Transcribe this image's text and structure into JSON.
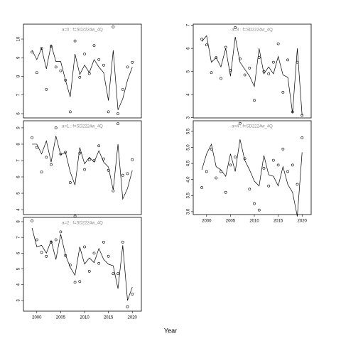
{
  "xlabel": "Year",
  "chart_data": [
    {
      "type": "line",
      "title": "a=0  :  f=SD2224w_4Q",
      "x": [
        1999,
        2000,
        2001,
        2002,
        2003,
        2004,
        2005,
        2006,
        2007,
        2008,
        2009,
        2010,
        2011,
        2012,
        2013,
        2014,
        2015,
        2016,
        2017,
        2018,
        2019,
        2020
      ],
      "xlim": [
        1997.2,
        2021.9
      ],
      "ylim": [
        5.77,
        10.8
      ],
      "yticks": [
        6,
        7,
        8,
        9,
        10
      ],
      "series": [
        {
          "color": "#000000",
          "marker": "circle",
          "values": [
            9.3,
            8.2,
            9.5,
            7.3,
            9.6,
            8.5,
            8.3,
            7.8,
            6.1,
            9.9,
            7.95,
            9.2,
            8.15,
            9.65,
            8.9,
            8.6,
            6.1,
            10.65,
            6.0,
            7.3,
            8.5,
            8.75
          ]
        },
        {
          "color": "#000000",
          "marker": "none",
          "values": [
            9.4,
            8.9,
            9.5,
            8.4,
            9.7,
            8.8,
            8.8,
            7.8,
            6.9,
            9.2,
            8.1,
            8.6,
            8.2,
            8.9,
            8.5,
            8.2,
            6.7,
            9.4,
            6.2,
            6.8,
            7.8,
            8.5
          ]
        }
      ]
    },
    {
      "type": "line",
      "title": "a=1  :  f=SD2224w_4Q",
      "x": [
        1999,
        2000,
        2001,
        2002,
        2003,
        2004,
        2005,
        2006,
        2007,
        2008,
        2009,
        2010,
        2011,
        2012,
        2013,
        2014,
        2015,
        2016,
        2017,
        2018,
        2019,
        2020
      ],
      "xlim": [
        1997.2,
        2021.9
      ],
      "ylim": [
        3.7,
        9.43
      ],
      "yticks": [
        4,
        5,
        6,
        7,
        8,
        9
      ],
      "series": [
        {
          "color": "#000000",
          "marker": "circle",
          "values": [
            8.4,
            7.8,
            6.3,
            7.2,
            6.75,
            9.0,
            7.4,
            7.5,
            5.65,
            3.6,
            7.45,
            6.45,
            7.05,
            7.0,
            7.9,
            7.1,
            6.4,
            5.15,
            9.25,
            6.1,
            6.2,
            7.05
          ]
        },
        {
          "color": "#000000",
          "marker": "none",
          "values": [
            8.0,
            8.0,
            7.4,
            8.2,
            6.9,
            8.5,
            7.35,
            7.5,
            6.3,
            5.5,
            7.8,
            6.8,
            7.2,
            6.9,
            7.6,
            6.9,
            6.6,
            5.2,
            8.0,
            4.65,
            5.3,
            6.4
          ]
        }
      ]
    },
    {
      "type": "line",
      "title": "a=2  :  f=SD2224w_4Q",
      "x": [
        1999,
        2000,
        2001,
        2002,
        2003,
        2004,
        2005,
        2006,
        2007,
        2008,
        2009,
        2010,
        2011,
        2012,
        2013,
        2014,
        2015,
        2016,
        2017,
        2018,
        2019,
        2020
      ],
      "xlim": [
        1997.2,
        2021.9
      ],
      "ylim": [
        2.32,
        8.27
      ],
      "yticks": [
        3,
        4,
        5,
        6,
        7,
        8
      ],
      "xticks": [
        2000,
        2005,
        2010,
        2015,
        2020
      ],
      "series": [
        {
          "color": "#000000",
          "marker": "circle",
          "values": [
            8.05,
            6.85,
            6.05,
            5.8,
            6.7,
            6.85,
            7.35,
            5.85,
            5.25,
            4.15,
            4.2,
            6.4,
            4.85,
            6.0,
            5.35,
            6.7,
            5.8,
            4.7,
            4.7,
            6.7,
            2.6,
            3.4
          ]
        },
        {
          "color": "#000000",
          "marker": "none",
          "values": [
            7.6,
            6.4,
            6.5,
            6.0,
            6.8,
            5.6,
            7.2,
            5.9,
            5.1,
            4.6,
            6.4,
            5.3,
            5.7,
            5.4,
            6.3,
            5.6,
            5.3,
            5.2,
            3.75,
            6.5,
            3.0,
            3.85
          ]
        }
      ]
    },
    {
      "type": "line",
      "title": "a=3  :  f=SD2224w_4Q",
      "x": [
        1999,
        2000,
        2001,
        2002,
        2003,
        2004,
        2005,
        2006,
        2007,
        2008,
        2009,
        2010,
        2011,
        2012,
        2013,
        2014,
        2015,
        2016,
        2017,
        2018,
        2019,
        2020
      ],
      "xlim": [
        1997.2,
        2021.9
      ],
      "ylim": [
        2.99,
        7.05
      ],
      "yticks": [
        3,
        4,
        5,
        6,
        7
      ],
      "series": [
        {
          "color": "#000000",
          "marker": "circle",
          "values": [
            6.4,
            6.15,
            4.95,
            5.6,
            4.7,
            6.05,
            5.05,
            6.9,
            5.55,
            4.85,
            5.15,
            3.75,
            5.6,
            5.0,
            4.9,
            5.4,
            6.2,
            4.1,
            5.5,
            3.25,
            5.4,
            3.1
          ]
        },
        {
          "color": "#000000",
          "marker": "none",
          "values": [
            6.3,
            6.55,
            5.4,
            5.6,
            5.2,
            6.0,
            4.8,
            6.5,
            5.4,
            5.1,
            4.8,
            4.35,
            6.0,
            4.9,
            5.2,
            4.9,
            5.65,
            4.85,
            4.75,
            3.2,
            6.0,
            3.1
          ]
        }
      ]
    },
    {
      "type": "line",
      "title": "a=4  :  f=SD2224w_4Q",
      "x": [
        1999,
        2000,
        2001,
        2002,
        2003,
        2004,
        2005,
        2006,
        2007,
        2008,
        2009,
        2010,
        2011,
        2012,
        2013,
        2014,
        2015,
        2016,
        2017,
        2018,
        2019,
        2020
      ],
      "xlim": [
        1997.2,
        2021.9
      ],
      "ylim": [
        2.91,
        5.83
      ],
      "yticks": [
        {
          "value": 3,
          "label": "3.0"
        },
        3.5,
        {
          "value": 4,
          "label": "4.0"
        },
        4.5,
        {
          "value": 5,
          "label": "5.0"
        },
        5.5
      ],
      "xticks": [
        2000,
        2005,
        2010,
        2015,
        2020
      ],
      "series": [
        {
          "color": "#000000",
          "marker": "circle",
          "values": [
            3.75,
            4.25,
            4.95,
            4.05,
            4.25,
            3.6,
            4.45,
            4.7,
            5.75,
            4.65,
            3.7,
            3.25,
            3.05,
            4.35,
            3.8,
            4.6,
            4.45,
            4.95,
            4.25,
            4.45,
            3.85,
            5.3
          ]
        },
        {
          "color": "#000000",
          "marker": "none",
          "values": [
            4.3,
            4.8,
            5.1,
            4.4,
            4.3,
            4.1,
            4.8,
            4.25,
            5.25,
            4.6,
            4.3,
            3.95,
            3.8,
            4.75,
            4.15,
            4.1,
            3.8,
            4.4,
            3.85,
            3.6,
            2.85,
            4.85
          ]
        }
      ]
    }
  ]
}
